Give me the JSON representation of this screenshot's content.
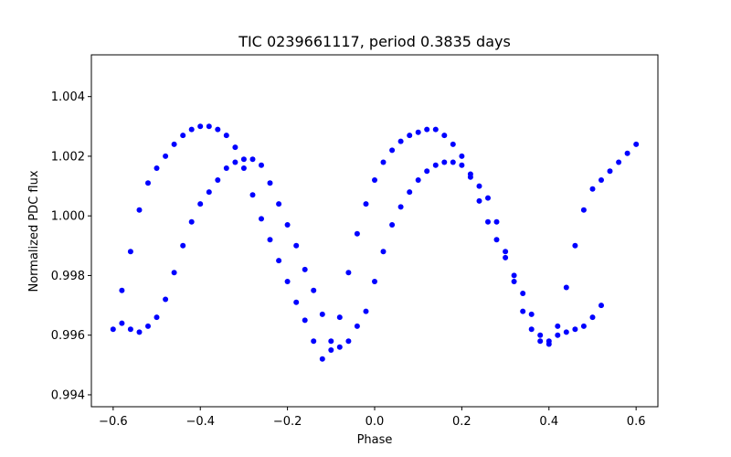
{
  "chart_data": {
    "type": "scatter",
    "title": "TIC 0239661117, period 0.3835 days",
    "xlabel": "Phase",
    "ylabel": "Normalized PDC flux",
    "xlim": [
      -0.65,
      0.65
    ],
    "ylim": [
      0.9936,
      1.0054
    ],
    "x_ticks": [
      -0.6,
      -0.4,
      -0.2,
      0.0,
      0.2,
      0.4,
      0.6
    ],
    "x_tick_labels": [
      "−0.6",
      "−0.4",
      "−0.2",
      "0.0",
      "0.2",
      "0.4",
      "0.6"
    ],
    "y_ticks": [
      0.994,
      0.996,
      0.998,
      1.0,
      1.002,
      1.004
    ],
    "y_tick_labels": [
      "0.994",
      "0.996",
      "0.998",
      "1.000",
      "1.002",
      "1.004"
    ],
    "grid": false,
    "series": [
      {
        "color": "#0000ff",
        "marker": "circle",
        "x": [
          -0.6,
          -0.58,
          -0.56,
          -0.54,
          -0.52,
          -0.5,
          -0.48,
          -0.46,
          -0.44,
          -0.42,
          -0.4,
          -0.38,
          -0.36,
          -0.34,
          -0.32,
          -0.3,
          -0.28,
          -0.26,
          -0.24,
          -0.22,
          -0.2,
          -0.18,
          -0.16,
          -0.14,
          -0.12,
          -0.1,
          -0.08,
          -0.06,
          -0.04,
          -0.02,
          0.0,
          0.02,
          0.04,
          0.06,
          0.08,
          0.1,
          0.12,
          0.14,
          0.16,
          0.18,
          0.2,
          0.22,
          0.24,
          0.26,
          0.28,
          0.3,
          0.32,
          0.34,
          0.36,
          0.38,
          0.4,
          0.42,
          0.44,
          0.46,
          0.48,
          0.5,
          0.52,
          0.54,
          0.56,
          0.58,
          0.6
        ],
        "y": [
          0.9962,
          0.9975,
          0.9988,
          1.0002,
          1.0011,
          1.0016,
          1.002,
          1.0024,
          1.0027,
          1.0029,
          1.003,
          1.003,
          1.0029,
          1.0027,
          1.0023,
          1.0016,
          1.0007,
          0.9999,
          0.9992,
          0.9985,
          0.9978,
          0.9971,
          0.9965,
          0.9958,
          0.9952,
          0.9955,
          0.9966,
          0.9981,
          0.9994,
          1.0004,
          1.0012,
          1.0018,
          1.0022,
          1.0025,
          1.0027,
          1.0028,
          1.0029,
          1.0029,
          1.0027,
          1.0024,
          1.002,
          1.0013,
          1.0005,
          0.9998,
          0.9992,
          0.9986,
          0.998,
          0.9974,
          0.9967,
          0.996,
          0.9957,
          0.9963,
          0.9976,
          0.999,
          1.0002,
          1.0009,
          1.0012,
          1.0015,
          1.0018,
          1.0021,
          1.0024
        ]
      },
      {
        "color": "#0000ff",
        "marker": "circle",
        "x": [
          -0.58,
          -0.56,
          -0.54,
          -0.52,
          -0.5,
          -0.48,
          -0.46,
          -0.44,
          -0.42,
          -0.4,
          -0.38,
          -0.36,
          -0.34,
          -0.32,
          -0.3,
          -0.28,
          -0.26,
          -0.24,
          -0.22,
          -0.2,
          -0.18,
          -0.16,
          -0.14,
          -0.12,
          -0.1,
          -0.08,
          -0.06,
          -0.04,
          -0.02,
          0.0,
          0.02,
          0.04,
          0.06,
          0.08,
          0.1,
          0.12,
          0.14,
          0.16,
          0.18,
          0.2,
          0.22,
          0.24,
          0.26,
          0.28,
          0.3,
          0.32,
          0.34,
          0.36,
          0.38,
          0.4,
          0.42,
          0.44,
          0.46,
          0.48,
          0.5,
          0.52
        ],
        "y": [
          0.9964,
          0.9962,
          0.9961,
          0.9963,
          0.9966,
          0.9972,
          0.9981,
          0.999,
          0.9998,
          1.0004,
          1.0008,
          1.0012,
          1.0016,
          1.0018,
          1.0019,
          1.0019,
          1.0017,
          1.0011,
          1.0004,
          0.9997,
          0.999,
          0.9982,
          0.9975,
          0.9967,
          0.9958,
          0.9956,
          0.9958,
          0.9963,
          0.9968,
          0.9978,
          0.9988,
          0.9997,
          1.0003,
          1.0008,
          1.0012,
          1.0015,
          1.0017,
          1.0018,
          1.0018,
          1.0017,
          1.0014,
          1.001,
          1.0006,
          0.9998,
          0.9988,
          0.9978,
          0.9968,
          0.9962,
          0.9958,
          0.9958,
          0.996,
          0.9961,
          0.9962,
          0.9963,
          0.9966,
          0.997
        ]
      }
    ]
  }
}
